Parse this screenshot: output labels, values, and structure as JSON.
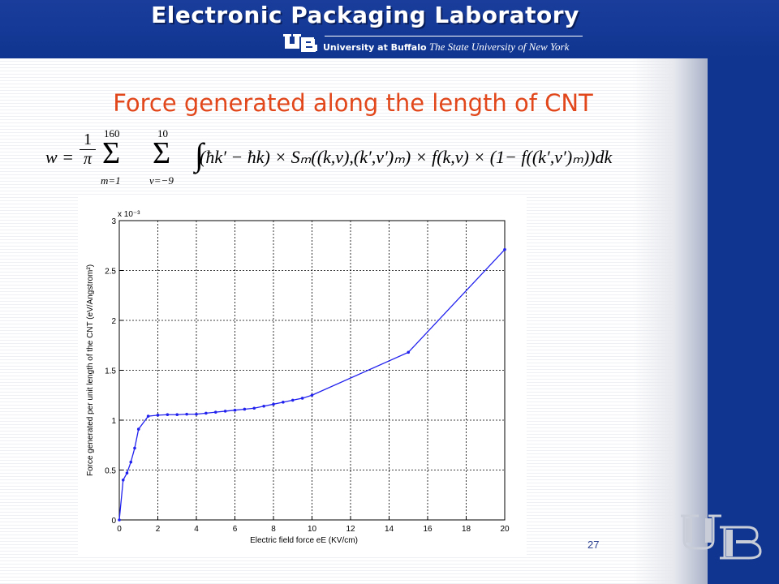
{
  "header": {
    "title": "Electronic Packaging Laboratory",
    "university": "University at Buffalo",
    "state_university": "The State University of New York"
  },
  "slide": {
    "title": "Force generated along the length of CNT",
    "page_number": "27"
  },
  "formula": {
    "lhs": "w =",
    "frac_num": "1",
    "frac_den": "π",
    "sum1_upper": "160",
    "sum1_lower": "m=1",
    "sum2_upper": "10",
    "sum2_lower": "ν=−9",
    "integrand": "(ħk′ − ħk) × Sₘ((k,ν),(k′,ν′)ₘ) × f(k,ν) × (1− f((k′,ν′)ₘ))dk"
  },
  "colors": {
    "header_blue": "#0f3590",
    "title_orange": "#e1471b",
    "series_blue": "#2222ee"
  },
  "chart_data": {
    "type": "line",
    "xlabel": "Electric field force eE (KV/cm)",
    "ylabel": "Force generated per unit length of the CNT (eV/Angstrom²)",
    "y_multiplier": "x 10⁻³",
    "xlim": [
      0,
      20
    ],
    "ylim": [
      0,
      3
    ],
    "x_ticks": [
      "0",
      "2",
      "4",
      "6",
      "8",
      "10",
      "12",
      "14",
      "16",
      "18",
      "20"
    ],
    "y_ticks": [
      "0",
      "0.5",
      "1",
      "1.5",
      "2",
      "2.5",
      "3"
    ],
    "grid": true,
    "series": [
      {
        "x": [
          0,
          0.2,
          0.4,
          0.6,
          0.8,
          1.0,
          1.5,
          2.0,
          2.5,
          3.0,
          3.5,
          4.0,
          4.5,
          5.0,
          5.5,
          6.0,
          6.5,
          7.0,
          7.5,
          8.0,
          8.5,
          9.0,
          9.5,
          10.0,
          15.0,
          20.0
        ],
        "y": [
          0,
          0.4,
          0.47,
          0.58,
          0.72,
          0.91,
          1.04,
          1.05,
          1.055,
          1.055,
          1.06,
          1.06,
          1.07,
          1.08,
          1.09,
          1.1,
          1.11,
          1.12,
          1.14,
          1.16,
          1.18,
          1.2,
          1.22,
          1.25,
          1.68,
          2.71
        ]
      }
    ]
  }
}
